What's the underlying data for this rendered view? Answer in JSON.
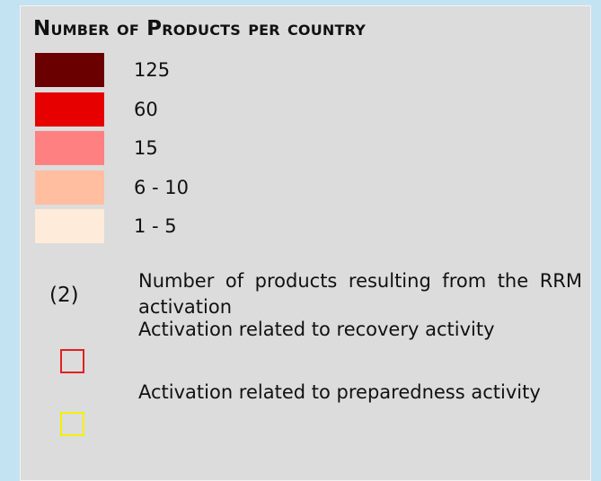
{
  "legend": {
    "title": "Number of Products per country",
    "classes": [
      {
        "label": "125",
        "color": "#6b0000"
      },
      {
        "label": "60",
        "color": "#e60000"
      },
      {
        "label": "15",
        "color": "#ff8080"
      },
      {
        "label": "6 - 10",
        "color": "#ffbea0"
      },
      {
        "label": "1 - 5",
        "color": "#ffebd9"
      }
    ],
    "items": [
      {
        "symbol": "(2)",
        "label": "Number of products resulting from the RRM activation"
      },
      {
        "color": "#e02020",
        "label": "Activation related to recovery activity"
      },
      {
        "color": "#f5f000",
        "label": "Activation related to preparedness activity"
      }
    ]
  }
}
